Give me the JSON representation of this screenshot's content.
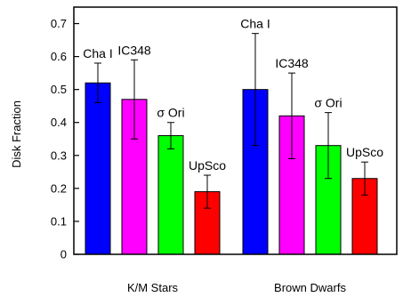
{
  "chart_data": {
    "type": "bar",
    "ylabel": "Disk Fraction",
    "ylim": [
      0,
      0.75
    ],
    "y_ticks": [
      0,
      0.1,
      0.2,
      0.3,
      0.4,
      0.5,
      0.6,
      0.7
    ],
    "y_tick_labels": [
      "0",
      "0.1",
      "0.2",
      "0.3",
      "0.4",
      "0.5",
      "0.6",
      "0.7"
    ],
    "grid": false,
    "legend": "none",
    "groups": [
      {
        "label": "K/M Stars",
        "bars": [
          {
            "label": "Cha I",
            "value": 0.52,
            "err_low": 0.46,
            "err_high": 0.58,
            "color": "#0000ff"
          },
          {
            "label": "IC348",
            "value": 0.47,
            "err_low": 0.35,
            "err_high": 0.59,
            "color": "#ff00ff"
          },
          {
            "label": "σ Ori",
            "value": 0.36,
            "err_low": 0.32,
            "err_high": 0.4,
            "color": "#00ff00"
          },
          {
            "label": "UpSco",
            "value": 0.19,
            "err_low": 0.14,
            "err_high": 0.24,
            "color": "#ff0000"
          }
        ]
      },
      {
        "label": "Brown Dwarfs",
        "bars": [
          {
            "label": "Cha I",
            "value": 0.5,
            "err_low": 0.33,
            "err_high": 0.67,
            "color": "#0000ff"
          },
          {
            "label": "IC348",
            "value": 0.42,
            "err_low": 0.29,
            "err_high": 0.55,
            "color": "#ff00ff"
          },
          {
            "label": "σ Ori",
            "value": 0.33,
            "err_low": 0.23,
            "err_high": 0.43,
            "color": "#00ff00"
          },
          {
            "label": "UpSco",
            "value": 0.23,
            "err_low": 0.18,
            "err_high": 0.28,
            "color": "#ff0000"
          }
        ]
      }
    ]
  }
}
